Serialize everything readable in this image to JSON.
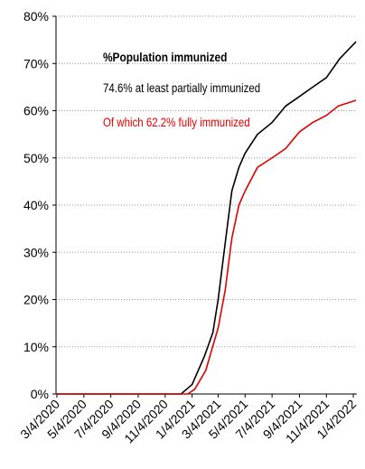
{
  "chart_data": {
    "type": "line",
    "title": "%Population immunized",
    "annotations": [
      "74.6% at least partially immunized",
      "Of which 62.2% fully immunized"
    ],
    "xlim": [
      "2020-03-02",
      "2022-01-12"
    ],
    "ylim": [
      0,
      80
    ],
    "yticks": [
      {
        "value": 0,
        "label": "0%"
      },
      {
        "value": 10,
        "label": "10%"
      },
      {
        "value": 20,
        "label": "20%"
      },
      {
        "value": 30,
        "label": "30%"
      },
      {
        "value": 40,
        "label": "40%"
      },
      {
        "value": 50,
        "label": "50%"
      },
      {
        "value": 60,
        "label": "60%"
      },
      {
        "value": 70,
        "label": "70%"
      },
      {
        "value": 80,
        "label": "80%"
      }
    ],
    "xticks": [
      {
        "value": "2020-03-04",
        "label": "3/4/2020"
      },
      {
        "value": "2020-05-04",
        "label": "5/4/2020"
      },
      {
        "value": "2020-07-04",
        "label": "7/4/2020"
      },
      {
        "value": "2020-09-04",
        "label": "9/4/2020"
      },
      {
        "value": "2020-11-04",
        "label": "11/4/2020"
      },
      {
        "value": "2021-01-04",
        "label": "1/4/2021"
      },
      {
        "value": "2021-03-04",
        "label": "3/4/2021"
      },
      {
        "value": "2021-05-04",
        "label": "5/4/2021"
      },
      {
        "value": "2021-07-04",
        "label": "7/4/2021"
      },
      {
        "value": "2021-09-04",
        "label": "9/4/2021"
      },
      {
        "value": "2021-11-04",
        "label": "11/4/2021"
      },
      {
        "value": "2022-01-04",
        "label": "1/4/2022"
      }
    ],
    "grid": true,
    "series": [
      {
        "name": "at least partially immunized",
        "color": "#000000",
        "x": [
          "2020-03-04",
          "2020-12-10",
          "2021-01-04",
          "2021-02-01",
          "2021-02-20",
          "2021-03-04",
          "2021-03-20",
          "2021-04-04",
          "2021-04-20",
          "2021-05-04",
          "2021-06-01",
          "2021-07-04",
          "2021-08-04",
          "2021-09-04",
          "2021-10-04",
          "2021-11-04",
          "2021-12-04",
          "2022-01-10"
        ],
        "values": [
          0,
          0,
          2,
          8,
          13,
          20,
          32,
          43,
          48,
          51,
          55,
          57.5,
          61,
          63,
          65,
          67,
          71,
          74.6
        ]
      },
      {
        "name": "fully immunized",
        "color": "#e00000",
        "x": [
          "2020-03-04",
          "2020-12-25",
          "2021-01-10",
          "2021-02-04",
          "2021-03-04",
          "2021-03-20",
          "2021-04-04",
          "2021-04-20",
          "2021-05-04",
          "2021-06-01",
          "2021-07-04",
          "2021-08-04",
          "2021-09-04",
          "2021-10-04",
          "2021-11-04",
          "2021-12-01",
          "2022-01-10"
        ],
        "values": [
          0,
          0,
          1,
          5,
          14,
          22,
          33,
          40,
          43,
          48,
          50,
          52,
          55.5,
          57.5,
          59,
          61,
          62.2
        ]
      }
    ]
  }
}
